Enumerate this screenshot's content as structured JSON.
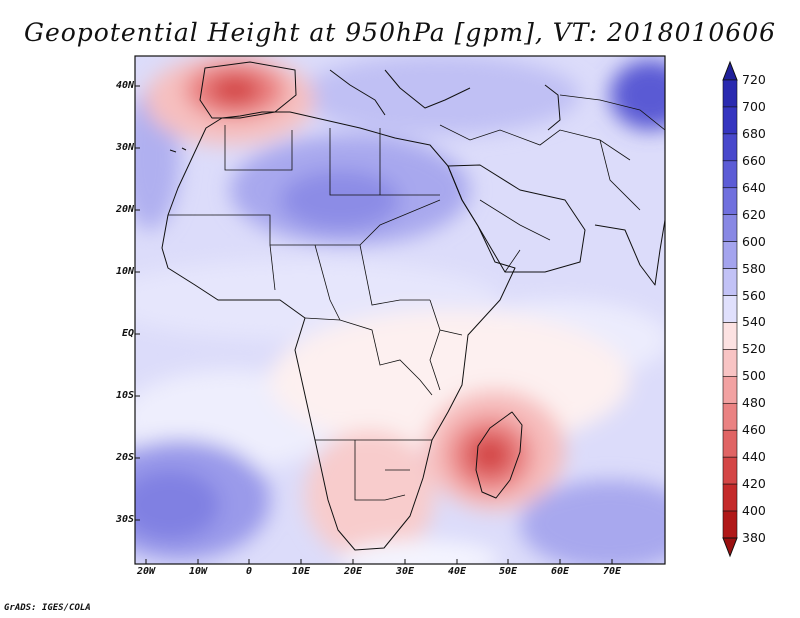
{
  "title": "Geopotential Height at 950hPa [gpm], VT: 2018010606",
  "credit": "GrADS: IGES/COLA",
  "map": {
    "lat_labels": [
      "40N",
      "30N",
      "20N",
      "10N",
      "EQ",
      "10S",
      "20S",
      "30S"
    ],
    "lon_labels": [
      "20W",
      "10W",
      "0",
      "10E",
      "20E",
      "30E",
      "40E",
      "50E",
      "60E",
      "70E"
    ]
  },
  "colorbar": {
    "levels": [
      "720",
      "700",
      "680",
      "660",
      "640",
      "620",
      "600",
      "580",
      "560",
      "540",
      "520",
      "500",
      "480",
      "460",
      "440",
      "420",
      "400",
      "380"
    ],
    "colors": [
      "#20209a",
      "#2a2ab0",
      "#3535c0",
      "#4848cc",
      "#5c5cd6",
      "#7070de",
      "#8888e4",
      "#a4a4ee",
      "#c2c2f6",
      "#e0e0fc",
      "#fce2e2",
      "#f8c4c4",
      "#f2a2a2",
      "#ea8282",
      "#e06464",
      "#d44646",
      "#c42a2a",
      "#b01818",
      "#9a1010"
    ]
  }
}
